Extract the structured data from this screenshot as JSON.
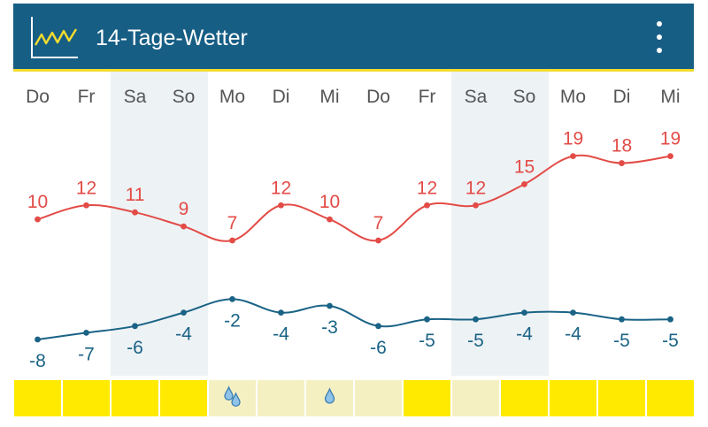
{
  "header": {
    "title": "14-Tage-Wetter",
    "bg": "#175e85",
    "accent": "#f2dc2f",
    "icon": "chart-line-icon",
    "menu_icon": "more-vert-icon"
  },
  "chart_data": {
    "type": "line",
    "categories": [
      "Do",
      "Fr",
      "Sa",
      "So",
      "Mo",
      "Di",
      "Mi",
      "Do",
      "Fr",
      "Sa",
      "So",
      "Mo",
      "Di",
      "Mi"
    ],
    "series": [
      {
        "values": [
          10,
          12,
          11,
          9,
          7,
          12,
          10,
          7,
          12,
          12,
          15,
          19,
          18,
          19
        ],
        "color": "#e34b46"
      },
      {
        "values": [
          -8,
          -7,
          -6,
          -4,
          -2,
          -4,
          -3,
          -6,
          -5,
          -5,
          -4,
          -4,
          -5,
          -5
        ],
        "color": "#1a6386"
      }
    ],
    "weekend_shading": [
      2,
      3,
      9,
      10
    ],
    "weekend_color": "#edf2f5",
    "precipitation_bar": {
      "colors": [
        "#ffea00",
        "#ffea00",
        "#ffea00",
        "#ffea00",
        "#f5f0c2",
        "#f5f0c2",
        "#f5f0c2",
        "#f5f0c2",
        "#ffea00",
        "#f5f0c2",
        "#ffea00",
        "#ffea00",
        "#ffea00",
        "#ffea00"
      ],
      "drops": [
        0,
        0,
        0,
        0,
        2,
        0,
        1,
        0,
        0,
        0,
        0,
        0,
        0,
        0
      ],
      "drop_icon": "raindrop-icon"
    }
  }
}
